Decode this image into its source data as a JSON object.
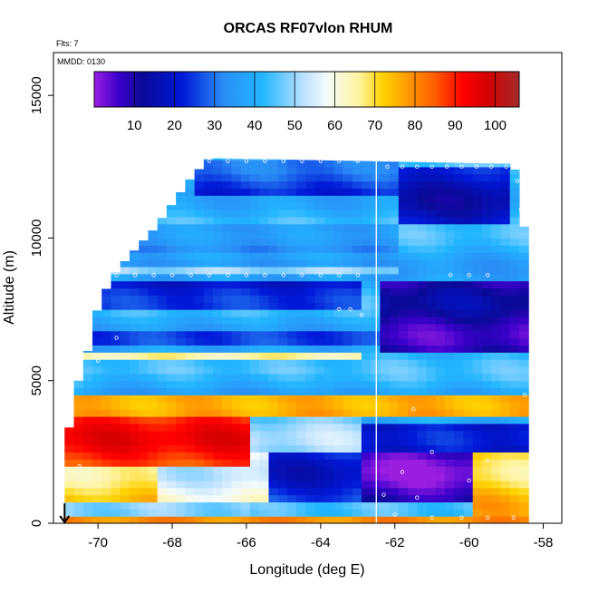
{
  "chart_data": {
    "type": "heatmap",
    "title": "ORCAS RF07vlon RHUM",
    "annotations": {
      "flights": "Flts: 7",
      "date": "MMDD: 0130"
    },
    "xlabel": "Longitude (deg E)",
    "ylabel": "Altitude (m)",
    "xlim": [
      -71.2,
      -57.5
    ],
    "ylim": [
      0,
      16500
    ],
    "x_ticks": [
      -70,
      -68,
      -66,
      -64,
      -62,
      -60,
      -58
    ],
    "x_tick_labels": [
      "-70",
      "-68",
      "-66",
      "-64",
      "-62",
      "-60",
      "-58"
    ],
    "y_ticks": [
      0,
      5000,
      10000,
      15000
    ],
    "y_tick_labels": [
      "0",
      "5000",
      "10000",
      "15000"
    ],
    "colorbar": {
      "min": 0,
      "max": 106,
      "ticks": [
        10,
        20,
        30,
        40,
        50,
        60,
        70,
        80,
        90,
        100
      ],
      "tick_labels": [
        "10",
        "20",
        "30",
        "40",
        "50",
        "60",
        "70",
        "80",
        "90",
        "100"
      ],
      "color_stops": [
        {
          "v": 0,
          "c": "#9a1ee0"
        },
        {
          "v": 6,
          "c": "#3c00cc"
        },
        {
          "v": 12,
          "c": "#0a0a98"
        },
        {
          "v": 22,
          "c": "#0018d8"
        },
        {
          "v": 32,
          "c": "#2a8cf6"
        },
        {
          "v": 42,
          "c": "#22b6ff"
        },
        {
          "v": 52,
          "c": "#b8e0ff"
        },
        {
          "v": 58,
          "c": "#f4fbfa"
        },
        {
          "v": 66,
          "c": "#fff4a0"
        },
        {
          "v": 72,
          "c": "#ffd200"
        },
        {
          "v": 78,
          "c": "#ff9c00"
        },
        {
          "v": 85,
          "c": "#ff5c00"
        },
        {
          "v": 92,
          "c": "#ff0000"
        },
        {
          "v": 98,
          "c": "#d50000"
        },
        {
          "v": 106,
          "c": "#a52a2a"
        }
      ]
    },
    "grid": false,
    "cell_size": {
      "lon": 0.25,
      "alt": 250
    },
    "envelope": [
      {
        "lon": -70.9,
        "top": 2400
      },
      {
        "lon": -70.6,
        "top": 4700
      },
      {
        "lon": -70.3,
        "top": 5900
      },
      {
        "lon": -70.0,
        "top": 7600
      },
      {
        "lon": -69.6,
        "top": 8700
      },
      {
        "lon": -69.0,
        "top": 9600
      },
      {
        "lon": -68.5,
        "top": 10300
      },
      {
        "lon": -68.0,
        "top": 11200
      },
      {
        "lon": -67.5,
        "top": 12100
      },
      {
        "lon": -67.0,
        "top": 12800
      },
      {
        "lon": -58.8,
        "top": 12600
      },
      {
        "lon": -58.5,
        "top": 10200
      },
      {
        "lon": -58.3,
        "top": 1200
      }
    ],
    "regions": [
      {
        "lon": [
          -71.0,
          -58.5
        ],
        "alt": [
          0,
          300
        ],
        "rh": 78
      },
      {
        "lon": [
          -71.0,
          -66.0
        ],
        "alt": [
          300,
          800
        ],
        "rh": 44
      },
      {
        "lon": [
          -71.0,
          -68.5
        ],
        "alt": [
          800,
          2100
        ],
        "rh": 70
      },
      {
        "lon": [
          -68.5,
          -65.5
        ],
        "alt": [
          800,
          2400
        ],
        "rh": 57
      },
      {
        "lon": [
          -65.5,
          -63.0
        ],
        "alt": [
          800,
          2600
        ],
        "rh": 22
      },
      {
        "lon": [
          -63.0,
          -60.0
        ],
        "alt": [
          700,
          2500
        ],
        "rh": 5
      },
      {
        "lon": [
          -60.0,
          -58.3
        ],
        "alt": [
          300,
          2600
        ],
        "rh": 72
      },
      {
        "lon": [
          -70.8,
          -66.0
        ],
        "alt": [
          2100,
          3800
        ],
        "rh": 90
      },
      {
        "lon": [
          -66.0,
          -63.0
        ],
        "alt": [
          2600,
          3800
        ],
        "rh": 48
      },
      {
        "lon": [
          -63.0,
          -58.5
        ],
        "alt": [
          2500,
          3600
        ],
        "rh": 18
      },
      {
        "lon": [
          -70.6,
          -58.5
        ],
        "alt": [
          3800,
          4600
        ],
        "rh": 80
      },
      {
        "lon": [
          -70.3,
          -64.0
        ],
        "alt": [
          4600,
          5300
        ],
        "rh": 38
      },
      {
        "lon": [
          -70.3,
          -63.0
        ],
        "alt": [
          5700,
          6000
        ],
        "rh": 64
      },
      {
        "lon": [
          -70.2,
          -62.0
        ],
        "alt": [
          6200,
          6800
        ],
        "rh": 30
      },
      {
        "lon": [
          -62.5,
          -58.5
        ],
        "alt": [
          6000,
          8600
        ],
        "rh": 10
      },
      {
        "lon": [
          -70.0,
          -63.0
        ],
        "alt": [
          7600,
          8500
        ],
        "rh": 20
      },
      {
        "lon": [
          -70.0,
          -62.0
        ],
        "alt": [
          8700,
          9000
        ],
        "rh": 55
      },
      {
        "lon": [
          -69.5,
          -62.0
        ],
        "alt": [
          9600,
          10400
        ],
        "rh": 32
      },
      {
        "lon": [
          -68.5,
          -59.0
        ],
        "alt": [
          10400,
          11500
        ],
        "rh": 42
      },
      {
        "lon": [
          -67.5,
          -62.0
        ],
        "alt": [
          11500,
          12800
        ],
        "rh": 26
      },
      {
        "lon": [
          -62.0,
          -58.8
        ],
        "alt": [
          10500,
          12600
        ],
        "rh": 18
      }
    ],
    "flight_path_lon": -62.5,
    "samples": [
      {
        "lon": -69.8,
        "alt": 8700
      },
      {
        "lon": -69.5,
        "alt": 8700
      },
      {
        "lon": -69.0,
        "alt": 8700
      },
      {
        "lon": -68.5,
        "alt": 8700
      },
      {
        "lon": -68.0,
        "alt": 8700
      },
      {
        "lon": -67.5,
        "alt": 8700
      },
      {
        "lon": -67.0,
        "alt": 8700
      },
      {
        "lon": -66.5,
        "alt": 8700
      },
      {
        "lon": -66.0,
        "alt": 8700
      },
      {
        "lon": -65.5,
        "alt": 8700
      },
      {
        "lon": -65.0,
        "alt": 8700
      },
      {
        "lon": -64.5,
        "alt": 8700
      },
      {
        "lon": -64.0,
        "alt": 8700
      },
      {
        "lon": -63.5,
        "alt": 8700
      },
      {
        "lon": -63.0,
        "alt": 8700
      },
      {
        "lon": -60.5,
        "alt": 8700
      },
      {
        "lon": -60.0,
        "alt": 8700
      },
      {
        "lon": -59.5,
        "alt": 8700
      },
      {
        "lon": -67.0,
        "alt": 12700
      },
      {
        "lon": -66.5,
        "alt": 12700
      },
      {
        "lon": -66.0,
        "alt": 12700
      },
      {
        "lon": -65.5,
        "alt": 12700
      },
      {
        "lon": -65.0,
        "alt": 12700
      },
      {
        "lon": -64.5,
        "alt": 12700
      },
      {
        "lon": -64.0,
        "alt": 12700
      },
      {
        "lon": -63.5,
        "alt": 12700
      },
      {
        "lon": -63.0,
        "alt": 12700
      },
      {
        "lon": -62.2,
        "alt": 12500
      },
      {
        "lon": -61.8,
        "alt": 12500
      },
      {
        "lon": -61.4,
        "alt": 12500
      },
      {
        "lon": -61.0,
        "alt": 12500
      },
      {
        "lon": -60.6,
        "alt": 12500
      },
      {
        "lon": -60.2,
        "alt": 12500
      },
      {
        "lon": -59.8,
        "alt": 12500
      },
      {
        "lon": -59.4,
        "alt": 12500
      },
      {
        "lon": -59.0,
        "alt": 12500
      },
      {
        "lon": -63.5,
        "alt": 7500
      },
      {
        "lon": -63.2,
        "alt": 7500
      },
      {
        "lon": -62.9,
        "alt": 7300
      },
      {
        "lon": -61.5,
        "alt": 4000
      },
      {
        "lon": -61.0,
        "alt": 2500
      },
      {
        "lon": -61.8,
        "alt": 1800
      },
      {
        "lon": -60.0,
        "alt": 1500
      },
      {
        "lon": -59.5,
        "alt": 2200
      },
      {
        "lon": -62.3,
        "alt": 1000
      },
      {
        "lon": -61.4,
        "alt": 900
      },
      {
        "lon": -62.0,
        "alt": 300
      },
      {
        "lon": -61.0,
        "alt": 200
      },
      {
        "lon": -60.2,
        "alt": 200
      },
      {
        "lon": -59.5,
        "alt": 200
      },
      {
        "lon": -58.8,
        "alt": 200
      },
      {
        "lon": -70.5,
        "alt": 2000
      },
      {
        "lon": -70.0,
        "alt": 5700
      },
      {
        "lon": -69.5,
        "alt": 6500
      },
      {
        "lon": -58.5,
        "alt": 4500
      },
      {
        "lon": -58.6,
        "alt": 11000
      },
      {
        "lon": -58.7,
        "alt": 12000
      }
    ],
    "arrow": {
      "lon": -70.9,
      "alt_from": 700,
      "alt_to": 0
    }
  }
}
